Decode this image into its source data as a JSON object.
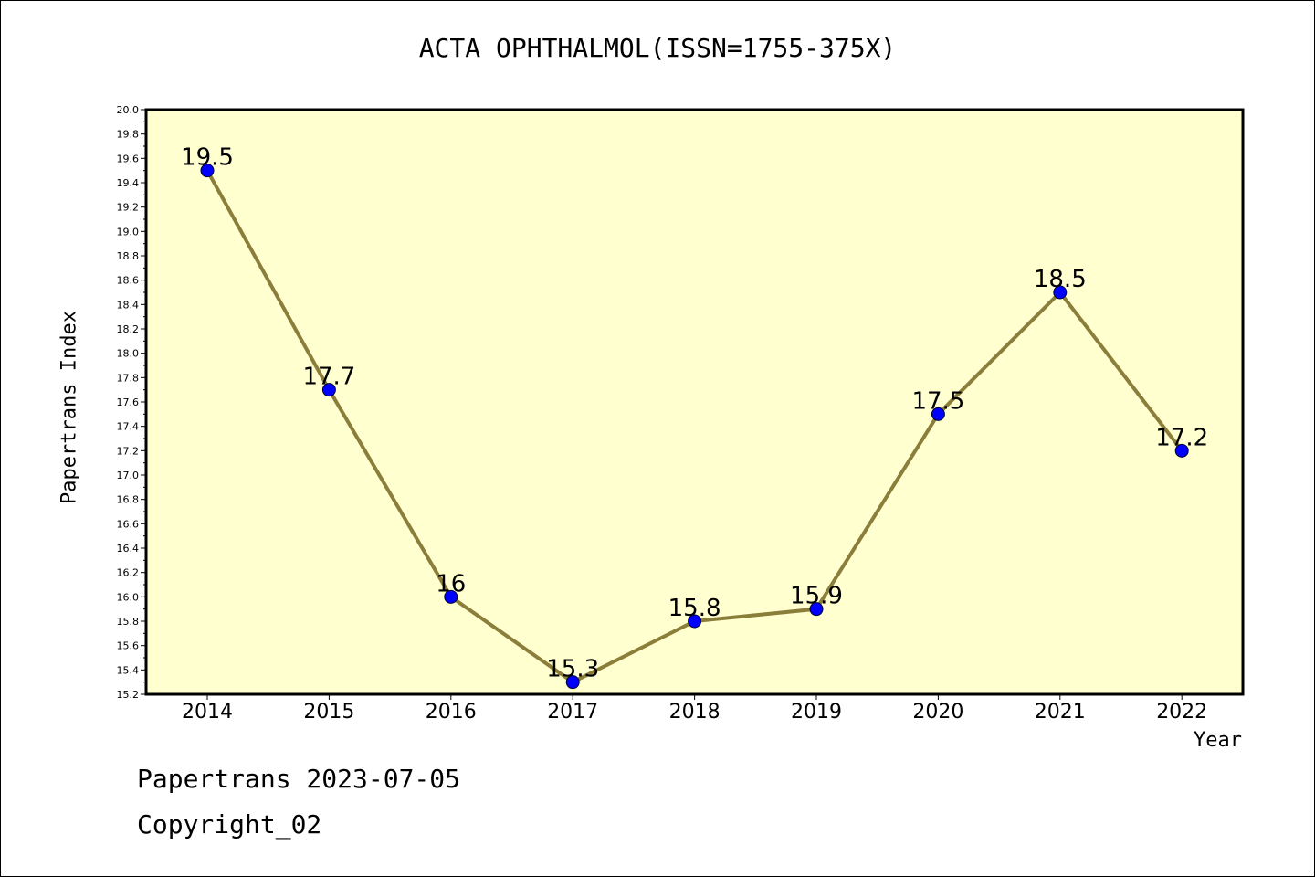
{
  "chart_data": {
    "type": "line",
    "title": "ACTA OPHTHALMOL(ISSN=1755-375X)",
    "xlabel": "Year",
    "ylabel": "Papertrans Index",
    "categories": [
      "2014",
      "2015",
      "2016",
      "2017",
      "2018",
      "2019",
      "2020",
      "2021",
      "2022"
    ],
    "values": [
      19.5,
      17.7,
      16,
      15.3,
      15.8,
      15.9,
      17.5,
      18.5,
      17.2
    ],
    "data_labels": [
      "19.5",
      "17.7",
      "16",
      "15.3",
      "15.8",
      "15.9",
      "17.5",
      "18.5",
      "17.2"
    ],
    "ylim": [
      15.2,
      20.0
    ],
    "y_ticks": [
      "15.2",
      "15.4",
      "15.6",
      "15.8",
      "16.0",
      "16.2",
      "16.4",
      "16.6",
      "16.8",
      "17.0",
      "17.2",
      "17.4",
      "17.6",
      "17.8",
      "18.0",
      "18.2",
      "18.4",
      "18.6",
      "18.8",
      "19.0",
      "19.2",
      "19.4",
      "19.6",
      "19.8",
      "20.0"
    ],
    "grid": false,
    "colors": {
      "plot_background": "#ffffd0",
      "line": "#8b7d3a",
      "marker": "#0000ff"
    }
  },
  "footer": {
    "line1": "Papertrans 2023-07-05",
    "line2": "Copyright_02"
  }
}
